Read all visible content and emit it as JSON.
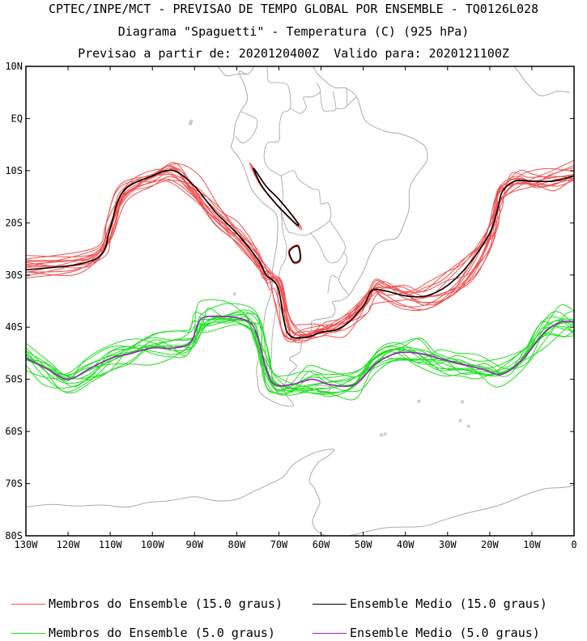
{
  "header": {
    "line1": "CPTEC/INPE/MCT - PREVISAO DE TEMPO GLOBAL POR ENSEMBLE - TQ0126L028",
    "line2": "Diagrama \"Spaguetti\" - Temperatura (C) (925 hPa)",
    "line3": "Previsao a partir de: 2020120400Z  Valido para: 2020121100Z"
  },
  "axes": {
    "lat_labels": [
      "10N",
      "EQ",
      "10S",
      "20S",
      "30S",
      "40S",
      "50S",
      "60S",
      "70S",
      "80S"
    ],
    "lon_labels": [
      "130W",
      "120W",
      "110W",
      "100W",
      "90W",
      "80W",
      "70W",
      "60W",
      "50W",
      "40W",
      "30W",
      "20W",
      "10W",
      "0"
    ],
    "lat_range": [
      -80,
      10
    ],
    "lon_range": [
      -130,
      0
    ]
  },
  "legend": [
    {
      "label": "Membros do Ensemble (15.0 graus)",
      "color": "#f05050"
    },
    {
      "label": "Ensemble Medio (15.0 graus)",
      "color": "#000000"
    },
    {
      "label": "Membros do Ensemble (5.0 graus)",
      "color": "#22dd22"
    },
    {
      "label": "Ensemble Medio (5.0 graus)",
      "color": "#9922bb"
    }
  ],
  "colors": {
    "coast": "#aaaaaa",
    "member15": "#f05050",
    "mean15": "#000000",
    "member5": "#22dd22",
    "mean5": "#9922bb"
  },
  "chart_data": {
    "type": "line",
    "x_unit": "longitude",
    "y_unit": "latitude",
    "series": [
      {
        "name": "Ensemble Medio (15.0 graus)",
        "x": [
          -130,
          -118,
          -112,
          -110,
          -107,
          -100,
          -95,
          -90,
          -85,
          -80,
          -75,
          -73,
          -71.5,
          -70,
          -68,
          -64,
          -60,
          -55,
          -50,
          -48,
          -45,
          -40,
          -35,
          -30,
          -25,
          -20,
          -18,
          -17,
          -14,
          -10,
          -5,
          0
        ],
        "y": [
          -29,
          -28,
          -26,
          -21,
          -14,
          -11,
          -10,
          -13,
          -18,
          -22,
          -27,
          -30,
          -31,
          -33,
          -41,
          -42,
          -41,
          -40,
          -36,
          -33,
          -33,
          -34,
          -34,
          -32,
          -28,
          -22,
          -17,
          -14,
          -12,
          -12,
          -12,
          -11
        ]
      },
      {
        "name": "Ensemble Medio (5.0 graus)",
        "x": [
          -130,
          -125,
          -120,
          -115,
          -110,
          -105,
          -100,
          -95,
          -91,
          -89,
          -87,
          -82,
          -77,
          -75,
          -73,
          -71,
          -67,
          -62,
          -58,
          -52,
          -47,
          -42,
          -37,
          -32,
          -27,
          -22,
          -17,
          -12,
          -7,
          -3,
          0
        ],
        "y": [
          -46,
          -48,
          -50,
          -48,
          -46,
          -45,
          -44,
          -44,
          -43,
          -39,
          -38,
          -38,
          -39,
          -42,
          -48,
          -51,
          -51,
          -50,
          -51,
          -51,
          -47,
          -45,
          -45,
          -46,
          -47,
          -48,
          -49,
          -46,
          -41,
          -39,
          -39
        ]
      }
    ]
  }
}
